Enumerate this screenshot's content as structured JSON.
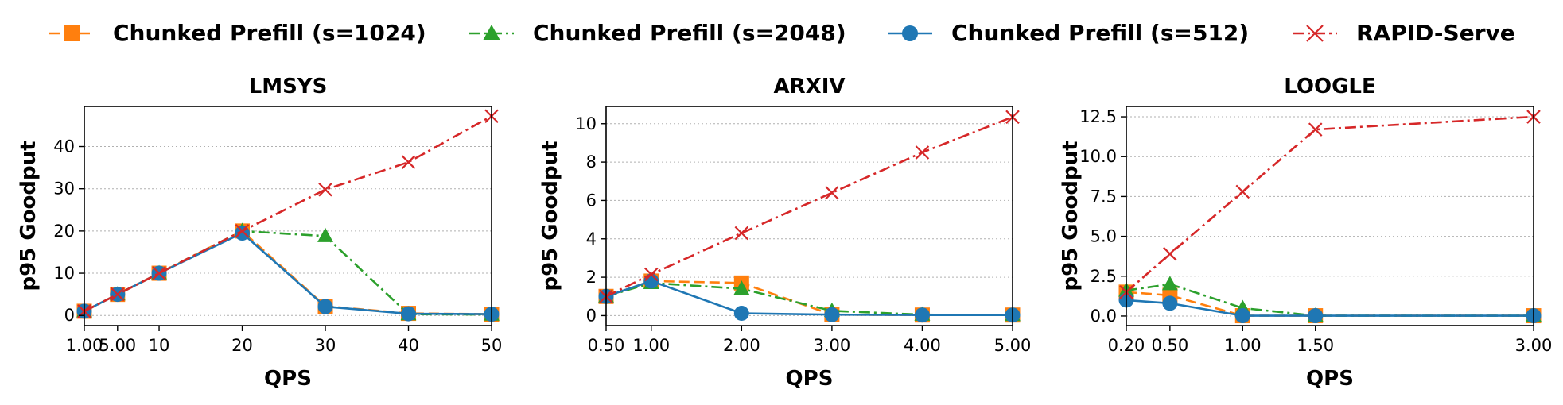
{
  "legend": [
    {
      "key": "s1024",
      "label": "Chunked Prefill (s=1024)"
    },
    {
      "key": "s2048",
      "label": "Chunked Prefill (s=2048)"
    },
    {
      "key": "s512",
      "label": "Chunked Prefill (s=512)"
    },
    {
      "key": "rapid",
      "label": "RAPID-Serve"
    }
  ],
  "series_styles": {
    "s1024": {
      "color": "#ff7f0e",
      "marker": "square",
      "dash": "dashed"
    },
    "s2048": {
      "color": "#2ca02c",
      "marker": "triangle",
      "dash": "dashdot"
    },
    "s512": {
      "color": "#1f77b4",
      "marker": "circle",
      "dash": "solid"
    },
    "rapid": {
      "color": "#d62728",
      "marker": "x",
      "dash": "dashdot"
    }
  },
  "chart_data": [
    {
      "type": "line",
      "title": "LMSYS",
      "xlabel": "QPS",
      "ylabel": "p95 Goodput",
      "x": [
        1,
        5,
        10,
        20,
        30,
        40,
        50
      ],
      "xticks": [
        1,
        5,
        10,
        20,
        30,
        40,
        50
      ],
      "xtick_labels": [
        "1.00",
        "5.00",
        "10",
        "20",
        "30",
        "40",
        "50"
      ],
      "xlim": [
        1,
        50
      ],
      "yticks": [
        0,
        10,
        20,
        30,
        40
      ],
      "ytick_labels": [
        "0",
        "10",
        "20",
        "30",
        "40"
      ],
      "ylim": [
        -2.4,
        49.5
      ],
      "grid": "y",
      "series": [
        {
          "key": "s1024",
          "name": "Chunked Prefill (s=1024)",
          "values": [
            1,
            5,
            10,
            20,
            2.2,
            0.5,
            0.3
          ]
        },
        {
          "key": "s2048",
          "name": "Chunked Prefill (s=2048)",
          "values": [
            1,
            5,
            10,
            20,
            18.8,
            0.3,
            0.2
          ]
        },
        {
          "key": "s512",
          "name": "Chunked Prefill (s=512)",
          "values": [
            1,
            5,
            10,
            19.5,
            2.1,
            0.4,
            0.3
          ]
        },
        {
          "key": "rapid",
          "name": "RAPID-Serve",
          "values": [
            1,
            5,
            10,
            20,
            29.8,
            36.3,
            47.2
          ]
        }
      ]
    },
    {
      "type": "line",
      "title": "ARXIV",
      "xlabel": "QPS",
      "ylabel": "p95 Goodput",
      "x": [
        0.5,
        1,
        2,
        3,
        4,
        5
      ],
      "xticks": [
        0.5,
        1,
        2,
        3,
        4,
        5
      ],
      "xtick_labels": [
        "0.50",
        "1.00",
        "2.00",
        "3.00",
        "4.00",
        "5.00"
      ],
      "xlim": [
        0.5,
        5
      ],
      "yticks": [
        0,
        2,
        4,
        6,
        8,
        10
      ],
      "ytick_labels": [
        "0",
        "2",
        "4",
        "6",
        "8",
        "10"
      ],
      "ylim": [
        -0.52,
        10.9
      ],
      "grid": "y",
      "series": [
        {
          "key": "s1024",
          "name": "Chunked Prefill (s=1024)",
          "values": [
            1.0,
            1.8,
            1.7,
            0.05,
            0.03,
            0.03
          ]
        },
        {
          "key": "s2048",
          "name": "Chunked Prefill (s=2048)",
          "values": [
            1.0,
            1.7,
            1.4,
            0.25,
            0.05,
            0.03
          ]
        },
        {
          "key": "s512",
          "name": "Chunked Prefill (s=512)",
          "values": [
            1.0,
            1.8,
            0.12,
            0.05,
            0.03,
            0.03
          ]
        },
        {
          "key": "rapid",
          "name": "RAPID-Serve",
          "values": [
            1.0,
            2.15,
            4.3,
            6.4,
            8.5,
            10.35
          ]
        }
      ]
    },
    {
      "type": "line",
      "title": "LOOGLE",
      "xlabel": "QPS",
      "ylabel": "p95 Goodput",
      "x": [
        0.2,
        0.5,
        1,
        1.5,
        3
      ],
      "xticks": [
        0.2,
        0.5,
        1,
        1.5,
        3
      ],
      "xtick_labels": [
        "0.20",
        "0.50",
        "1.00",
        "1.50",
        "3.00"
      ],
      "xlim": [
        0.2,
        3
      ],
      "yticks": [
        0,
        2.5,
        5,
        7.5,
        10,
        12.5
      ],
      "ytick_labels": [
        "0.0",
        "2.5",
        "5.0",
        "7.5",
        "10.0",
        "12.5"
      ],
      "ylim": [
        -0.6,
        13.15
      ],
      "grid": "y",
      "series": [
        {
          "key": "s1024",
          "name": "Chunked Prefill (s=1024)",
          "values": [
            1.5,
            1.3,
            0.02,
            0.02,
            0.02
          ]
        },
        {
          "key": "s2048",
          "name": "Chunked Prefill (s=2048)",
          "values": [
            1.6,
            2.0,
            0.5,
            0.02,
            0.02
          ]
        },
        {
          "key": "s512",
          "name": "Chunked Prefill (s=512)",
          "values": [
            1.0,
            0.8,
            0.02,
            0.02,
            0.02
          ]
        },
        {
          "key": "rapid",
          "name": "RAPID-Serve",
          "values": [
            1.5,
            3.9,
            7.8,
            11.7,
            12.5
          ]
        }
      ]
    }
  ]
}
